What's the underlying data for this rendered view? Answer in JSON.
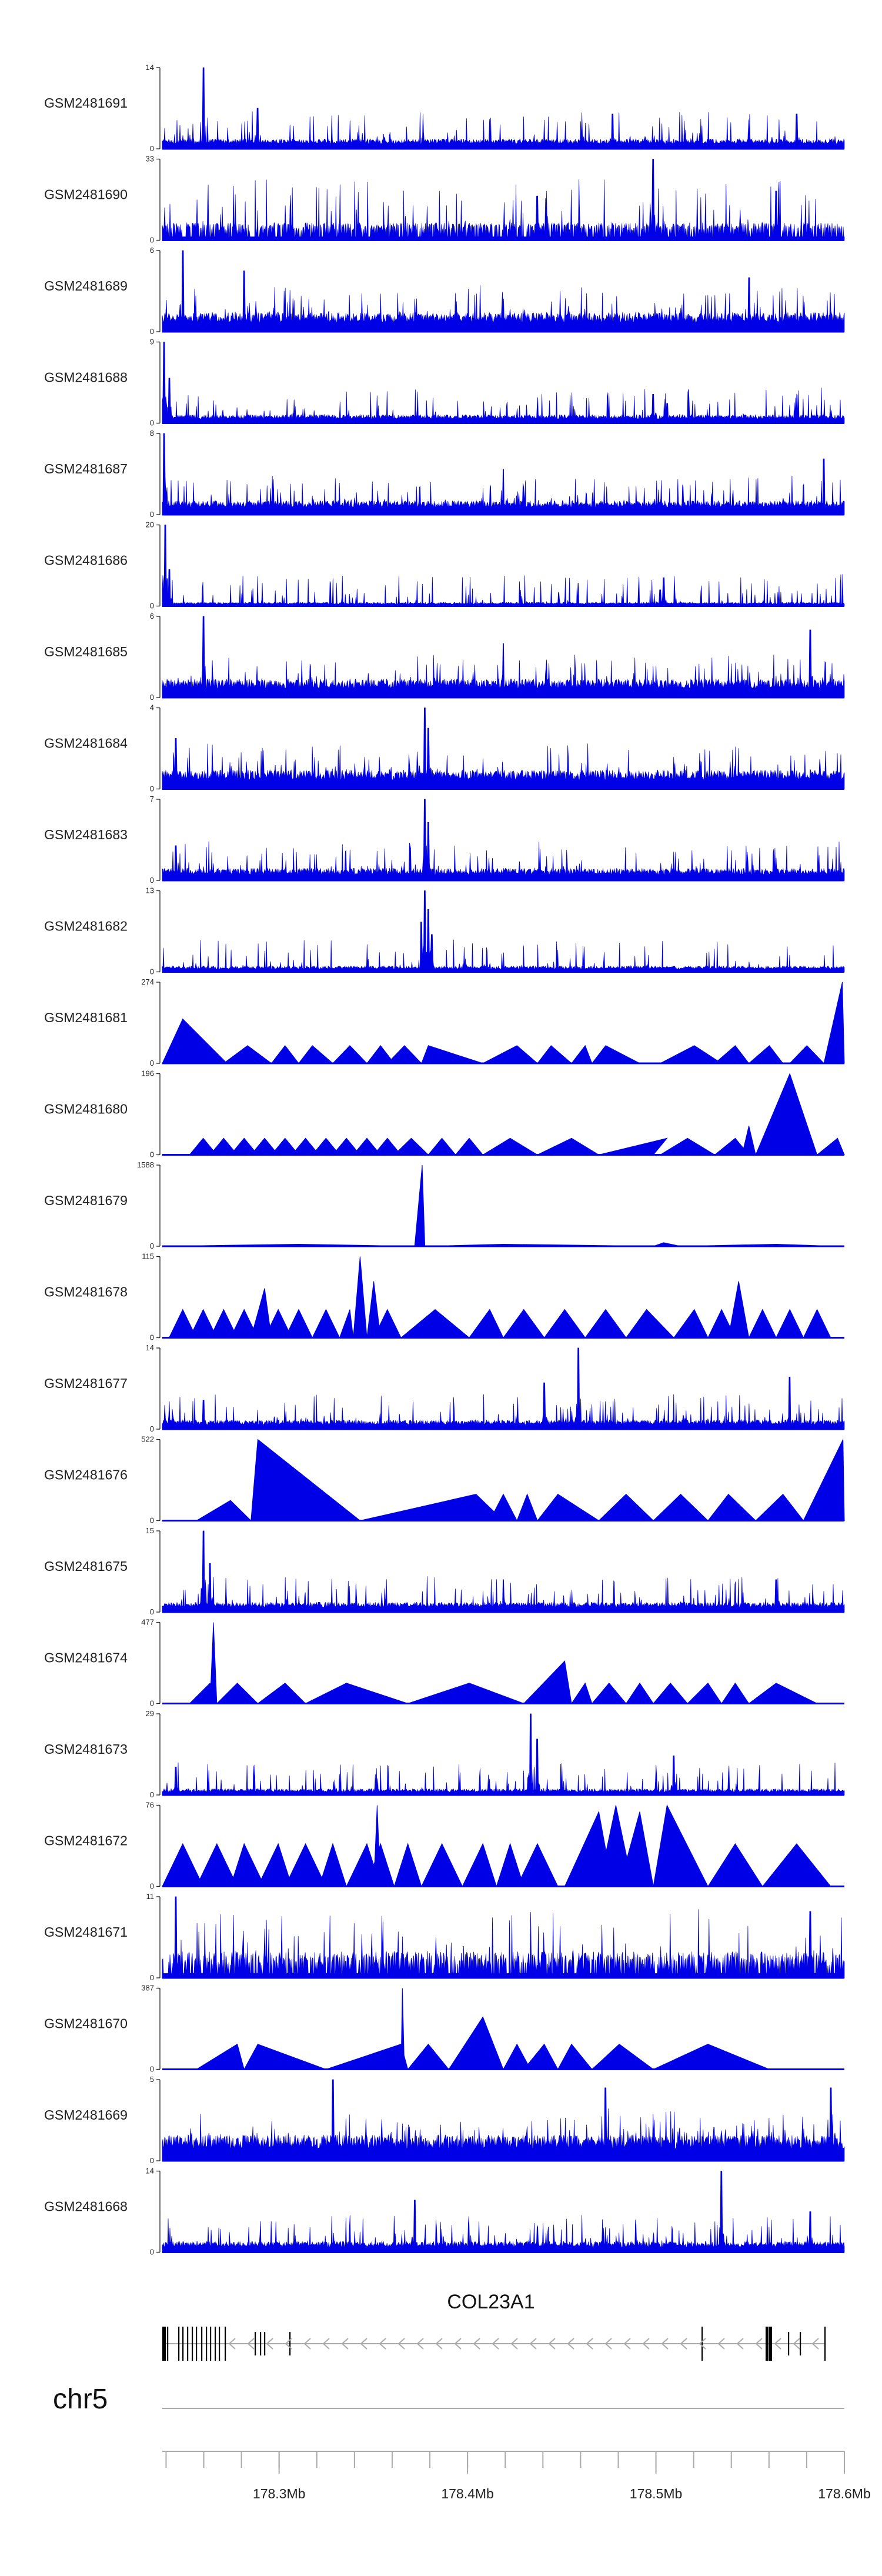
{
  "chart_data": {
    "type": "area",
    "title": "",
    "x_range": [
      178.238,
      178.6
    ],
    "x_unit": "Mb",
    "tracks": [
      {
        "name": "GSM2481691",
        "ymax": 14,
        "style": "dense",
        "base": 1.5,
        "noise": 1.6,
        "spikes": [
          [
            0.06,
            14
          ],
          [
            0.14,
            7
          ],
          [
            0.66,
            6
          ],
          [
            0.93,
            6
          ]
        ]
      },
      {
        "name": "GSM2481690",
        "ymax": 33,
        "style": "sparse",
        "base": 7,
        "noise": 6,
        "spikes": [
          [
            0.72,
            33
          ],
          [
            0.55,
            18
          ],
          [
            0.9,
            20
          ]
        ]
      },
      {
        "name": "GSM2481689",
        "ymax": 6,
        "style": "dense",
        "base": 1.2,
        "noise": 1.4,
        "spikes": [
          [
            0.03,
            6
          ],
          [
            0.12,
            4.5
          ],
          [
            0.86,
            4
          ]
        ]
      },
      {
        "name": "GSM2481688",
        "ymax": 9,
        "style": "dense",
        "base": 0.8,
        "noise": 0.9,
        "spikes": [
          [
            0.003,
            9
          ],
          [
            0.01,
            5
          ],
          [
            0.72,
            3.2
          ],
          [
            0.74,
            2.2
          ]
        ]
      },
      {
        "name": "GSM2481687",
        "ymax": 8,
        "style": "dense",
        "base": 1.3,
        "noise": 1.2,
        "spikes": [
          [
            0.003,
            8
          ],
          [
            0.5,
            4.5
          ],
          [
            0.97,
            5.5
          ]
        ]
      },
      {
        "name": "GSM2481686",
        "ymax": 20,
        "style": "dense",
        "base": 0.8,
        "noise": 0.9,
        "spikes": [
          [
            0.004,
            20
          ],
          [
            0.01,
            9
          ],
          [
            0.735,
            7
          ],
          [
            0.73,
            4
          ]
        ]
      },
      {
        "name": "GSM2481685",
        "ymax": 6,
        "style": "dense",
        "base": 1.2,
        "noise": 1.3,
        "spikes": [
          [
            0.06,
            6
          ],
          [
            0.95,
            5
          ],
          [
            0.5,
            4
          ]
        ]
      },
      {
        "name": "GSM2481684",
        "ymax": 4,
        "style": "dense",
        "base": 0.8,
        "noise": 0.9,
        "spikes": [
          [
            0.385,
            4
          ],
          [
            0.39,
            3
          ],
          [
            0.02,
            2.5
          ]
        ]
      },
      {
        "name": "GSM2481683",
        "ymax": 7,
        "style": "dense",
        "base": 0.9,
        "noise": 1.0,
        "spikes": [
          [
            0.385,
            7
          ],
          [
            0.39,
            5
          ],
          [
            0.02,
            3
          ]
        ]
      },
      {
        "name": "GSM2481682",
        "ymax": 13,
        "style": "dense",
        "base": 0.8,
        "noise": 0.9,
        "spikes": [
          [
            0.385,
            13
          ],
          [
            0.39,
            10
          ],
          [
            0.38,
            8
          ],
          [
            0.395,
            6
          ]
        ]
      },
      {
        "name": "GSM2481681",
        "ymax": 274,
        "style": "triangles",
        "peaks": [
          [
            0.0,
            0.095,
            0.03,
            150
          ],
          [
            0.09,
            0.16,
            0.125,
            60
          ],
          [
            0.16,
            0.2,
            0.18,
            60
          ],
          [
            0.2,
            0.25,
            0.22,
            60
          ],
          [
            0.25,
            0.3,
            0.275,
            60
          ],
          [
            0.3,
            0.34,
            0.32,
            60
          ],
          [
            0.33,
            0.38,
            0.355,
            60
          ],
          [
            0.38,
            0.47,
            0.39,
            60
          ],
          [
            0.47,
            0.55,
            0.52,
            60
          ],
          [
            0.55,
            0.6,
            0.57,
            60
          ],
          [
            0.6,
            0.63,
            0.62,
            60
          ],
          [
            0.63,
            0.7,
            0.65,
            60
          ],
          [
            0.73,
            0.82,
            0.78,
            60
          ],
          [
            0.81,
            0.86,
            0.84,
            60
          ],
          [
            0.86,
            0.91,
            0.89,
            60
          ],
          [
            0.92,
            0.97,
            0.945,
            60
          ],
          [
            0.97,
            1.0,
            0.997,
            274
          ]
        ]
      },
      {
        "name": "GSM2481680",
        "ymax": 196,
        "style": "triangles",
        "peaks": [
          [
            0.04,
            0.08,
            0.06,
            40
          ],
          [
            0.07,
            0.11,
            0.09,
            40
          ],
          [
            0.1,
            0.14,
            0.12,
            40
          ],
          [
            0.13,
            0.17,
            0.15,
            40
          ],
          [
            0.16,
            0.2,
            0.18,
            40
          ],
          [
            0.19,
            0.23,
            0.21,
            40
          ],
          [
            0.22,
            0.26,
            0.24,
            40
          ],
          [
            0.25,
            0.29,
            0.27,
            40
          ],
          [
            0.28,
            0.32,
            0.3,
            40
          ],
          [
            0.31,
            0.35,
            0.33,
            40
          ],
          [
            0.34,
            0.39,
            0.365,
            40
          ],
          [
            0.39,
            0.43,
            0.41,
            40
          ],
          [
            0.43,
            0.47,
            0.45,
            40
          ],
          [
            0.47,
            0.55,
            0.51,
            40
          ],
          [
            0.55,
            0.64,
            0.6,
            40
          ],
          [
            0.64,
            0.72,
            0.74,
            40
          ],
          [
            0.73,
            0.81,
            0.77,
            40
          ],
          [
            0.81,
            0.86,
            0.84,
            40
          ],
          [
            0.85,
            0.87,
            0.86,
            70
          ],
          [
            0.87,
            0.96,
            0.92,
            196
          ],
          [
            0.96,
            1.0,
            0.99,
            40
          ]
        ]
      },
      {
        "name": "GSM2481679",
        "ymax": 1588,
        "style": "triangles",
        "peaks": [
          [
            0.0,
            0.37,
            0.2,
            40
          ],
          [
            0.37,
            0.385,
            0.381,
            1588
          ],
          [
            0.385,
            0.73,
            0.5,
            40
          ],
          [
            0.72,
            0.76,
            0.735,
            70
          ],
          [
            0.76,
            0.99,
            0.9,
            40
          ]
        ]
      },
      {
        "name": "GSM2481678",
        "ymax": 115,
        "style": "triangles",
        "peaks": [
          [
            0.01,
            0.05,
            0.03,
            40
          ],
          [
            0.04,
            0.08,
            0.06,
            40
          ],
          [
            0.07,
            0.11,
            0.09,
            40
          ],
          [
            0.1,
            0.14,
            0.12,
            40
          ],
          [
            0.13,
            0.16,
            0.15,
            70
          ],
          [
            0.15,
            0.19,
            0.17,
            40
          ],
          [
            0.18,
            0.22,
            0.2,
            40
          ],
          [
            0.22,
            0.26,
            0.24,
            40
          ],
          [
            0.26,
            0.28,
            0.275,
            40
          ],
          [
            0.28,
            0.3,
            0.29,
            115
          ],
          [
            0.3,
            0.32,
            0.31,
            80
          ],
          [
            0.31,
            0.35,
            0.33,
            40
          ],
          [
            0.35,
            0.45,
            0.4,
            40
          ],
          [
            0.45,
            0.5,
            0.48,
            40
          ],
          [
            0.5,
            0.56,
            0.53,
            40
          ],
          [
            0.56,
            0.62,
            0.59,
            40
          ],
          [
            0.62,
            0.68,
            0.65,
            40
          ],
          [
            0.68,
            0.75,
            0.71,
            40
          ],
          [
            0.75,
            0.8,
            0.78,
            40
          ],
          [
            0.8,
            0.84,
            0.82,
            40
          ],
          [
            0.83,
            0.86,
            0.845,
            80
          ],
          [
            0.86,
            0.9,
            0.88,
            40
          ],
          [
            0.9,
            0.94,
            0.92,
            40
          ],
          [
            0.94,
            0.98,
            0.96,
            40
          ]
        ]
      },
      {
        "name": "GSM2481677",
        "ymax": 14,
        "style": "dense",
        "base": 1.4,
        "noise": 1.5,
        "spikes": [
          [
            0.61,
            14
          ],
          [
            0.92,
            9
          ],
          [
            0.56,
            8
          ],
          [
            0.06,
            5
          ]
        ]
      },
      {
        "name": "GSM2481676",
        "ymax": 522,
        "style": "triangles",
        "peaks": [
          [
            0.05,
            0.13,
            0.1,
            130
          ],
          [
            0.13,
            0.29,
            0.14,
            522
          ],
          [
            0.29,
            0.5,
            0.46,
            170
          ],
          [
            0.48,
            0.52,
            0.5,
            170
          ],
          [
            0.52,
            0.55,
            0.535,
            170
          ],
          [
            0.55,
            0.64,
            0.58,
            170
          ],
          [
            0.64,
            0.72,
            0.68,
            170
          ],
          [
            0.72,
            0.8,
            0.76,
            170
          ],
          [
            0.8,
            0.87,
            0.83,
            170
          ],
          [
            0.87,
            0.94,
            0.91,
            170
          ],
          [
            0.94,
            1.0,
            0.998,
            522
          ]
        ]
      },
      {
        "name": "GSM2481675",
        "ymax": 15,
        "style": "dense",
        "base": 1.6,
        "noise": 1.7,
        "spikes": [
          [
            0.06,
            15
          ],
          [
            0.07,
            9
          ],
          [
            0.5,
            6
          ],
          [
            0.9,
            6
          ]
        ]
      },
      {
        "name": "GSM2481674",
        "ymax": 477,
        "style": "triangles",
        "peaks": [
          [
            0.04,
            0.08,
            0.07,
            120
          ],
          [
            0.07,
            0.08,
            0.075,
            477
          ],
          [
            0.08,
            0.14,
            0.11,
            120
          ],
          [
            0.14,
            0.21,
            0.18,
            120
          ],
          [
            0.21,
            0.36,
            0.27,
            120
          ],
          [
            0.36,
            0.53,
            0.45,
            120
          ],
          [
            0.53,
            0.6,
            0.59,
            250
          ],
          [
            0.6,
            0.63,
            0.62,
            120
          ],
          [
            0.63,
            0.68,
            0.655,
            120
          ],
          [
            0.68,
            0.72,
            0.7,
            120
          ],
          [
            0.72,
            0.77,
            0.745,
            120
          ],
          [
            0.77,
            0.82,
            0.8,
            120
          ],
          [
            0.82,
            0.86,
            0.84,
            120
          ],
          [
            0.86,
            0.96,
            0.9,
            120
          ]
        ]
      },
      {
        "name": "GSM2481673",
        "ymax": 29,
        "style": "dense",
        "base": 1.8,
        "noise": 2.2,
        "spikes": [
          [
            0.54,
            29
          ],
          [
            0.55,
            20
          ],
          [
            0.75,
            14
          ],
          [
            0.02,
            10
          ]
        ]
      },
      {
        "name": "GSM2481672",
        "ymax": 76,
        "style": "triangles",
        "peaks": [
          [
            0.0,
            0.06,
            0.03,
            40
          ],
          [
            0.05,
            0.11,
            0.08,
            40
          ],
          [
            0.1,
            0.15,
            0.12,
            40
          ],
          [
            0.14,
            0.19,
            0.17,
            40
          ],
          [
            0.18,
            0.24,
            0.21,
            40
          ],
          [
            0.23,
            0.27,
            0.25,
            40
          ],
          [
            0.27,
            0.32,
            0.3,
            40
          ],
          [
            0.3,
            0.34,
            0.32,
            40
          ],
          [
            0.31,
            0.32,
            0.315,
            76
          ],
          [
            0.34,
            0.38,
            0.36,
            40
          ],
          [
            0.38,
            0.44,
            0.41,
            40
          ],
          [
            0.44,
            0.49,
            0.47,
            40
          ],
          [
            0.49,
            0.53,
            0.51,
            40
          ],
          [
            0.52,
            0.58,
            0.55,
            40
          ],
          [
            0.59,
            0.66,
            0.64,
            70
          ],
          [
            0.64,
            0.69,
            0.665,
            76
          ],
          [
            0.67,
            0.72,
            0.7,
            70
          ],
          [
            0.72,
            0.8,
            0.74,
            76
          ],
          [
            0.8,
            0.88,
            0.84,
            40
          ],
          [
            0.88,
            0.98,
            0.93,
            40
          ]
        ]
      },
      {
        "name": "GSM2481671",
        "ymax": 11,
        "style": "sparse",
        "base": 3,
        "noise": 3.5,
        "spikes": [
          [
            0.02,
            11
          ],
          [
            0.95,
            9
          ]
        ]
      },
      {
        "name": "GSM2481670",
        "ymax": 387,
        "style": "triangles",
        "peaks": [
          [
            0.05,
            0.12,
            0.11,
            120
          ],
          [
            0.12,
            0.24,
            0.14,
            120
          ],
          [
            0.24,
            0.36,
            0.35,
            120
          ],
          [
            0.35,
            0.355,
            0.352,
            387
          ],
          [
            0.36,
            0.42,
            0.39,
            120
          ],
          [
            0.42,
            0.5,
            0.47,
            250
          ],
          [
            0.5,
            0.54,
            0.52,
            120
          ],
          [
            0.53,
            0.58,
            0.56,
            120
          ],
          [
            0.58,
            0.63,
            0.6,
            120
          ],
          [
            0.63,
            0.72,
            0.67,
            120
          ],
          [
            0.72,
            0.89,
            0.8,
            120
          ]
        ]
      },
      {
        "name": "GSM2481669",
        "ymax": 5,
        "style": "dense",
        "base": 1.3,
        "noise": 1.6,
        "spikes": [
          [
            0.25,
            5
          ],
          [
            0.65,
            4.5
          ],
          [
            0.98,
            4.5
          ]
        ]
      },
      {
        "name": "GSM2481668",
        "ymax": 14,
        "style": "dense",
        "base": 1.6,
        "noise": 1.8,
        "spikes": [
          [
            0.82,
            14
          ],
          [
            0.37,
            9
          ],
          [
            0.95,
            7
          ]
        ]
      }
    ],
    "gene": {
      "name": "COL23A1",
      "strand": "-"
    },
    "chromosome": "chr5",
    "x_ticks": [
      {
        "value": 178.3,
        "label": "178.3Mb"
      },
      {
        "value": 178.4,
        "label": "178.4Mb"
      },
      {
        "value": 178.5,
        "label": "178.5Mb"
      },
      {
        "value": 178.6,
        "label": "178.6Mb"
      }
    ],
    "minor_tick_step": 0.02,
    "colors": {
      "signal": "#0000e6",
      "axis": "#222222",
      "gene": "#000000",
      "gene_line": "#aaaaaa",
      "text": "#222222"
    }
  }
}
